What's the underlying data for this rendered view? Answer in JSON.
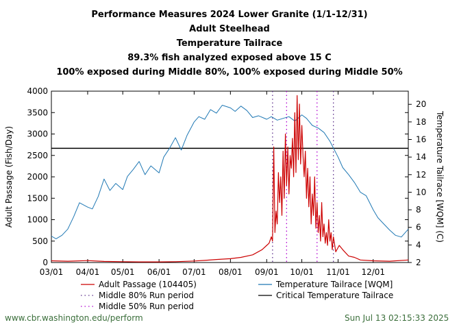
{
  "titles": [
    "Performance Measures 2024 Lower Granite (1/1-12/31)",
    "Adult Steelhead",
    "Temperature Tailrace",
    "89.3% fish analyzed exposed above 15 C",
    "100% exposed during Middle 80%, 100% exposed during Middle 50%"
  ],
  "footer": {
    "left": "www.cbr.washington.edu/perform",
    "right": "Sun Jul 13 02:15:33 2025"
  },
  "colors": {
    "passage": "#cc0000",
    "temperature": "#1f78b4",
    "critical": "#000000",
    "mid80": "#5b2d8a",
    "mid50": "#b000d0"
  },
  "chart_data": {
    "type": "line",
    "xlabel": "",
    "ylabel": "Adult Passage (Fish/Day)",
    "y2label": "Temperature Tailrace [WQM] (C)",
    "xlim": [
      "2024-03-01",
      "2024-12-31"
    ],
    "ylim": [
      0,
      4000
    ],
    "y2lim": [
      2,
      21.5
    ],
    "x_ticks": [
      "03/01",
      "04/01",
      "05/01",
      "06/01",
      "07/01",
      "08/01",
      "09/01",
      "10/01",
      "11/01",
      "12/01"
    ],
    "y_ticks": [
      "0",
      "500",
      "1000",
      "1500",
      "2000",
      "2500",
      "3000",
      "3500",
      "4000"
    ],
    "y2_ticks": [
      "2",
      "4",
      "6",
      "8",
      "10",
      "12",
      "14",
      "16",
      "18",
      "20"
    ],
    "critical_temperature": 15,
    "middle_80_period": [
      "2024-09-06",
      "2024-10-28"
    ],
    "middle_50_period": [
      "2024-09-18",
      "2024-10-14"
    ],
    "legend": [
      {
        "label": "Adult Passage (104405)",
        "style": "red-line"
      },
      {
        "label": "Temperature Tailrace [WQM]",
        "style": "blue-line"
      },
      {
        "label": "Middle 80% Run period",
        "style": "dotted-purple"
      },
      {
        "label": "Critical Temperature Tailrace",
        "style": "black-line"
      },
      {
        "label": "Middle 50% Run period",
        "style": "dotted-magenta"
      }
    ],
    "series": [
      {
        "name": "Temperature Tailrace [WQM]",
        "axis": "right",
        "x": [
          "2024-03-01",
          "2024-03-05",
          "2024-03-10",
          "2024-03-15",
          "2024-03-20",
          "2024-03-25",
          "2024-04-01",
          "2024-04-05",
          "2024-04-10",
          "2024-04-15",
          "2024-04-20",
          "2024-04-25",
          "2024-05-01",
          "2024-05-05",
          "2024-05-10",
          "2024-05-15",
          "2024-05-20",
          "2024-05-25",
          "2024-06-01",
          "2024-06-05",
          "2024-06-10",
          "2024-06-15",
          "2024-06-20",
          "2024-06-25",
          "2024-07-01",
          "2024-07-05",
          "2024-07-10",
          "2024-07-15",
          "2024-07-20",
          "2024-07-25",
          "2024-08-01",
          "2024-08-05",
          "2024-08-10",
          "2024-08-15",
          "2024-08-20",
          "2024-08-25",
          "2024-09-01",
          "2024-09-05",
          "2024-09-10",
          "2024-09-15",
          "2024-09-20",
          "2024-09-25",
          "2024-10-01",
          "2024-10-05",
          "2024-10-10",
          "2024-10-15",
          "2024-10-20",
          "2024-10-25",
          "2024-11-01",
          "2024-11-05",
          "2024-11-10",
          "2024-11-15",
          "2024-11-20",
          "2024-11-25",
          "2024-12-01",
          "2024-12-05",
          "2024-12-10",
          "2024-12-15",
          "2024-12-20",
          "2024-12-25",
          "2024-12-31"
        ],
        "values": [
          5.0,
          4.7,
          5.1,
          5.8,
          7.2,
          8.8,
          8.3,
          8.1,
          9.5,
          11.5,
          10.2,
          11.0,
          10.3,
          11.8,
          12.6,
          13.5,
          12.0,
          13.0,
          12.2,
          14.0,
          15.0,
          16.2,
          14.8,
          16.5,
          18.0,
          18.6,
          18.3,
          19.4,
          19.0,
          19.9,
          19.6,
          19.2,
          19.8,
          19.3,
          18.5,
          18.7,
          18.3,
          18.6,
          18.2,
          18.4,
          18.6,
          18.1,
          18.8,
          18.4,
          17.6,
          17.3,
          16.8,
          15.8,
          14.0,
          12.8,
          12.0,
          11.1,
          10.0,
          9.6,
          8.0,
          7.1,
          6.4,
          5.7,
          5.1,
          4.9,
          5.8
        ]
      },
      {
        "name": "Adult Passage (104405)",
        "axis": "left",
        "x": [
          "2024-03-01",
          "2024-03-15",
          "2024-04-01",
          "2024-04-15",
          "2024-05-01",
          "2024-05-15",
          "2024-06-01",
          "2024-06-15",
          "2024-07-01",
          "2024-07-10",
          "2024-07-20",
          "2024-08-01",
          "2024-08-10",
          "2024-08-20",
          "2024-08-28",
          "2024-09-01",
          "2024-09-03",
          "2024-09-05",
          "2024-09-06",
          "2024-09-07",
          "2024-09-08",
          "2024-09-09",
          "2024-09-10",
          "2024-09-11",
          "2024-09-12",
          "2024-09-13",
          "2024-09-14",
          "2024-09-15",
          "2024-09-16",
          "2024-09-17",
          "2024-09-18",
          "2024-09-19",
          "2024-09-20",
          "2024-09-21",
          "2024-09-22",
          "2024-09-23",
          "2024-09-24",
          "2024-09-25",
          "2024-09-26",
          "2024-09-27",
          "2024-09-28",
          "2024-09-29",
          "2024-09-30",
          "2024-10-01",
          "2024-10-02",
          "2024-10-03",
          "2024-10-04",
          "2024-10-05",
          "2024-10-06",
          "2024-10-07",
          "2024-10-08",
          "2024-10-09",
          "2024-10-10",
          "2024-10-11",
          "2024-10-12",
          "2024-10-13",
          "2024-10-14",
          "2024-10-15",
          "2024-10-16",
          "2024-10-17",
          "2024-10-18",
          "2024-10-19",
          "2024-10-20",
          "2024-10-21",
          "2024-10-22",
          "2024-10-23",
          "2024-10-24",
          "2024-10-25",
          "2024-10-26",
          "2024-10-27",
          "2024-10-28",
          "2024-10-30",
          "2024-11-02",
          "2024-11-05",
          "2024-11-10",
          "2024-11-15",
          "2024-11-20",
          "2024-12-01",
          "2024-12-15",
          "2024-12-31"
        ],
        "values": [
          40,
          30,
          45,
          25,
          20,
          15,
          15,
          20,
          35,
          50,
          70,
          90,
          120,
          180,
          300,
          400,
          450,
          600,
          500,
          2700,
          700,
          1200,
          900,
          2100,
          1400,
          2000,
          1100,
          2600,
          1500,
          3000,
          1800,
          2700,
          1600,
          2500,
          2200,
          2900,
          2000,
          3500,
          2100,
          3900,
          2400,
          3700,
          2300,
          3200,
          2500,
          2000,
          2600,
          1500,
          2200,
          1300,
          2000,
          900,
          1600,
          1100,
          2000,
          800,
          1400,
          700,
          1100,
          500,
          1400,
          600,
          900,
          450,
          700,
          400,
          1000,
          500,
          700,
          300,
          600,
          250,
          400,
          300,
          150,
          120,
          60,
          40,
          30,
          60
        ]
      }
    ]
  }
}
